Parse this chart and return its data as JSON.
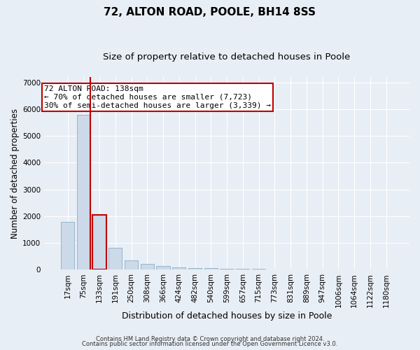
{
  "title": "72, ALTON ROAD, POOLE, BH14 8SS",
  "subtitle": "Size of property relative to detached houses in Poole",
  "xlabel": "Distribution of detached houses by size in Poole",
  "ylabel": "Number of detached properties",
  "footnote1": "Contains HM Land Registry data © Crown copyright and database right 2024.",
  "footnote2": "Contains public sector information licensed under the Open Government Licence v3.0.",
  "annotation_title": "72 ALTON ROAD: 138sqm",
  "annotation_line2": "← 70% of detached houses are smaller (7,723)",
  "annotation_line3": "30% of semi-detached houses are larger (3,339) →",
  "bar_labels": [
    "17sqm",
    "75sqm",
    "133sqm",
    "191sqm",
    "250sqm",
    "308sqm",
    "366sqm",
    "424sqm",
    "482sqm",
    "540sqm",
    "599sqm",
    "657sqm",
    "715sqm",
    "773sqm",
    "831sqm",
    "889sqm",
    "947sqm",
    "1006sqm",
    "1064sqm",
    "1122sqm",
    "1180sqm"
  ],
  "bar_values": [
    1780,
    5780,
    2060,
    810,
    350,
    210,
    135,
    85,
    65,
    50,
    40,
    35,
    30,
    20,
    15,
    10,
    8,
    6,
    5,
    4,
    3
  ],
  "bar_color": "#ccd9e8",
  "bar_edge_color": "#89aec8",
  "highlight_bar_index": 2,
  "highlight_edge_color": "#c00000",
  "vline_color": "#c00000",
  "annotation_box_color": "#c00000",
  "annotation_box_fill": "#ffffff",
  "ylim": [
    0,
    7200
  ],
  "yticks": [
    0,
    1000,
    2000,
    3000,
    4000,
    5000,
    6000,
    7000
  ],
  "bg_color": "#e8eef5",
  "grid_color": "#ffffff",
  "title_fontsize": 11,
  "subtitle_fontsize": 9.5,
  "ylabel_fontsize": 8.5,
  "xlabel_fontsize": 9,
  "tick_fontsize": 7.5,
  "annotation_fontsize": 8,
  "footnote_fontsize": 6
}
